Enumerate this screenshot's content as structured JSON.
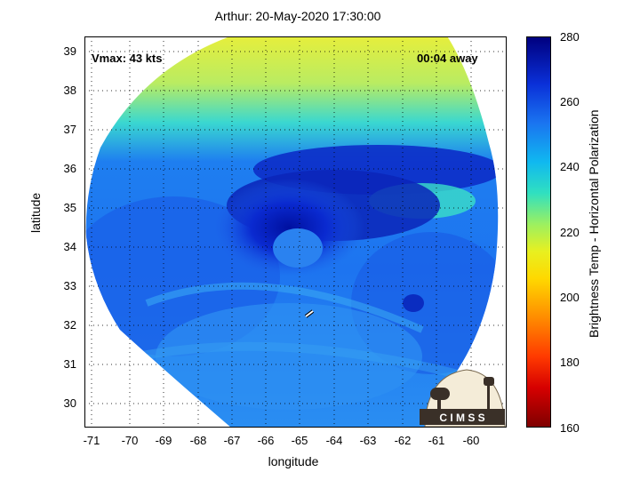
{
  "title": "Arthur: 20-May-2020 17:30:00",
  "annotations": {
    "vmax": "Vmax: 43 kts",
    "time_away": "00:04 away"
  },
  "axes": {
    "xlabel": "longitude",
    "ylabel": "latitude",
    "xticks": [
      "-71",
      "-70",
      "-69",
      "-68",
      "-67",
      "-66",
      "-65",
      "-64",
      "-63",
      "-62",
      "-61",
      "-60"
    ],
    "yticks": [
      "39",
      "38",
      "37",
      "36",
      "35",
      "34",
      "33",
      "32",
      "31",
      "30"
    ],
    "xlim": [
      -71.3,
      -59.3
    ],
    "ylim": [
      29.4,
      39.4
    ],
    "grid": "dotted"
  },
  "colorbar": {
    "label": "Brightness Temp - Horizontal Polarization",
    "ticks": [
      "280",
      "260",
      "240",
      "220",
      "200",
      "180",
      "160"
    ],
    "range": [
      160,
      280
    ]
  },
  "logo": {
    "text": "C I M S S"
  },
  "colors": {
    "background_outside_swath": "#ffffff",
    "cold_core": "#001aa8",
    "warm_edge": "#e8f040"
  }
}
